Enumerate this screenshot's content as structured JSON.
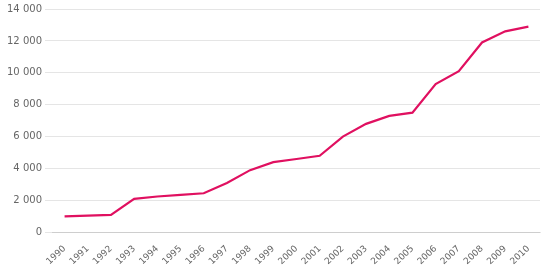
{
  "chart_data": {
    "type": "line",
    "x": [
      1990,
      1991,
      1992,
      1993,
      1994,
      1995,
      1996,
      1997,
      1998,
      1999,
      2000,
      2001,
      2002,
      2003,
      2004,
      2005,
      2006,
      2007,
      2008,
      2009,
      2010
    ],
    "values": [
      1000,
      1050,
      1100,
      2100,
      2250,
      2350,
      2450,
      3100,
      3900,
      4400,
      4600,
      4800,
      6000,
      6800,
      7300,
      7500,
      9300,
      10100,
      11900,
      12600,
      12900
    ],
    "color": "#e01060",
    "xlim": [
      1989.5,
      2010.5
    ],
    "xticks": [
      1990,
      1991,
      1992,
      1993,
      1994,
      1995,
      1996,
      1997,
      1998,
      1999,
      2000,
      2001,
      2002,
      2003,
      2004,
      2005,
      2006,
      2007,
      2008,
      2009,
      2010
    ],
    "ylim": [
      0,
      14000
    ],
    "yticks": [
      0,
      {
        "value": 2000,
        "label": "2 000"
      },
      {
        "value": 4000,
        "label": "4 000"
      },
      {
        "value": 6000,
        "label": "6 000"
      },
      {
        "value": 8000,
        "label": "8 000"
      },
      {
        "value": 10000,
        "label": "10 000"
      },
      {
        "value": 12000,
        "label": "12 000"
      },
      {
        "value": 14000,
        "label": "14 000"
      }
    ],
    "grid": true
  }
}
